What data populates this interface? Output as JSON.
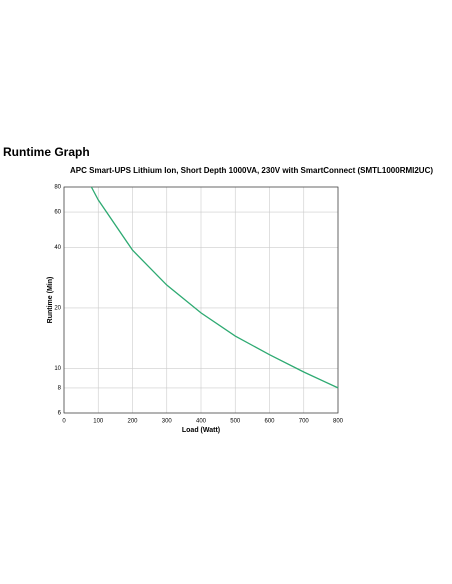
{
  "chart_data": {
    "type": "line",
    "title": "Runtime Graph",
    "subtitle": "APC Smart-UPS Lithium Ion, Short Depth 1000VA, 230V with SmartConnect (SMTL1000RMI2UC)",
    "x_label": "Load (Watt)",
    "y_label": "Runtime (Min)",
    "x": [
      80,
      100,
      200,
      300,
      400,
      500,
      600,
      700,
      800
    ],
    "series": [
      {
        "name": "Runtime",
        "color": "#2eaa72",
        "values": [
          80,
          69,
          38.8,
          26,
          18.9,
          14.5,
          11.7,
          9.6,
          8
        ]
      }
    ],
    "xlim": [
      0,
      800
    ],
    "xticks": [
      0,
      100,
      200,
      300,
      400,
      500,
      600,
      700,
      800
    ],
    "ylim": [
      6,
      80
    ],
    "yticks": [
      6,
      8,
      10,
      20,
      40,
      60,
      80
    ],
    "y_scale": "log",
    "grid": true,
    "title_color": "#5aae2e"
  }
}
